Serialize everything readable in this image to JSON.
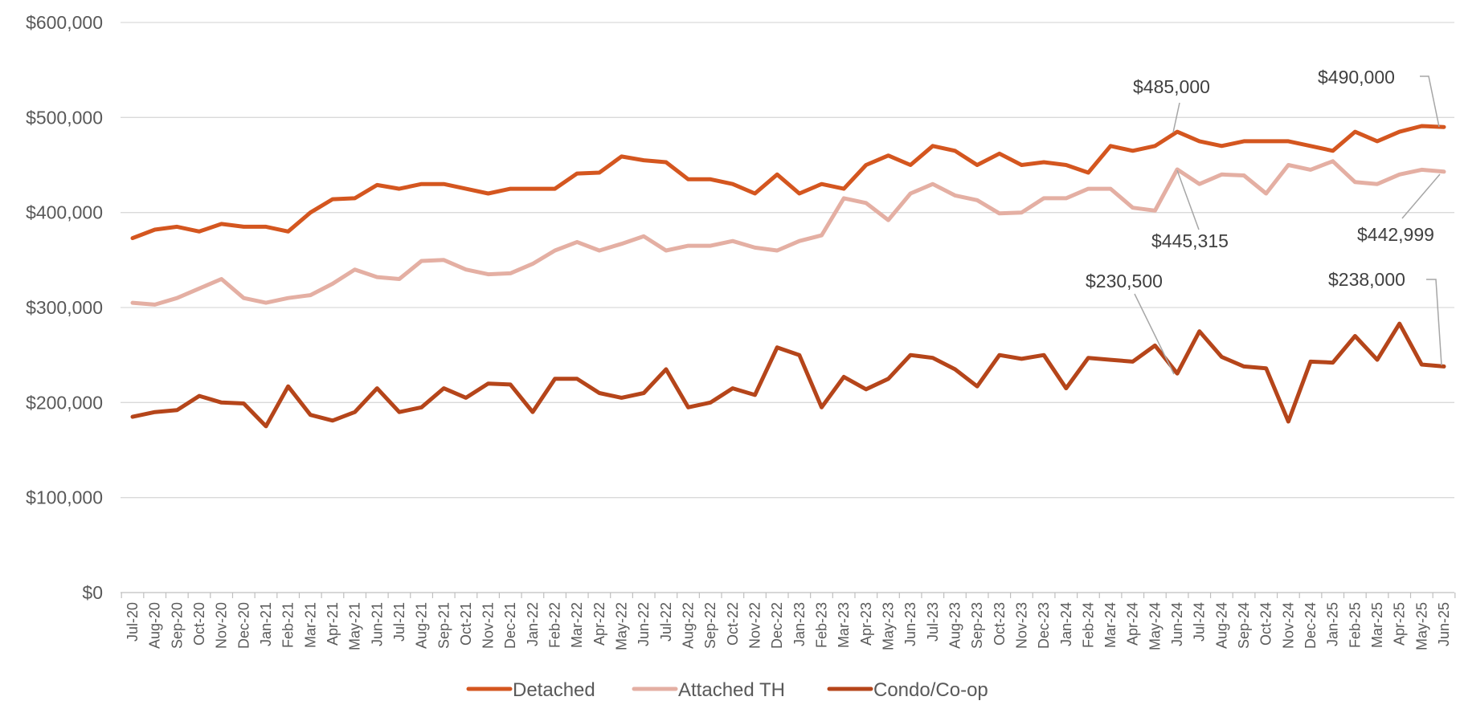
{
  "chart_data": {
    "type": "line",
    "title": "",
    "xlabel": "",
    "ylabel": "",
    "ylim": [
      0,
      600000
    ],
    "y_ticks": [
      "$0",
      "$100,000",
      "$200,000",
      "$300,000",
      "$400,000",
      "$500,000",
      "$600,000"
    ],
    "grid": "horizontal",
    "legend_position": "bottom",
    "categories": [
      "Jul-20",
      "Aug-20",
      "Sep-20",
      "Oct-20",
      "Nov-20",
      "Dec-20",
      "Jan-21",
      "Feb-21",
      "Mar-21",
      "Apr-21",
      "May-21",
      "Jun-21",
      "Jul-21",
      "Aug-21",
      "Sep-21",
      "Oct-21",
      "Nov-21",
      "Dec-21",
      "Jan-22",
      "Feb-22",
      "Mar-22",
      "Apr-22",
      "May-22",
      "Jun-22",
      "Jul-22",
      "Aug-22",
      "Sep-22",
      "Oct-22",
      "Nov-22",
      "Dec-22",
      "Jan-23",
      "Feb-23",
      "Mar-23",
      "Apr-23",
      "May-23",
      "Jun-23",
      "Jul-23",
      "Aug-23",
      "Sep-23",
      "Oct-23",
      "Nov-23",
      "Dec-23",
      "Jan-24",
      "Feb-24",
      "Mar-24",
      "Apr-24",
      "May-24",
      "Jun-24",
      "Jul-24",
      "Aug-24",
      "Sep-24",
      "Oct-24",
      "Nov-24",
      "Dec-24",
      "Jan-25",
      "Feb-25",
      "Mar-25",
      "Apr-25",
      "May-25",
      "Jun-25"
    ],
    "series": [
      {
        "name": "Detached",
        "color": "#D4561F",
        "values": [
          373000,
          382000,
          385000,
          380000,
          388000,
          385000,
          385000,
          380000,
          400000,
          414000,
          415000,
          429000,
          425000,
          430000,
          430000,
          425000,
          420000,
          425000,
          425000,
          425000,
          441000,
          442000,
          459000,
          455000,
          453000,
          435000,
          435000,
          430000,
          420000,
          440000,
          420000,
          430000,
          425000,
          450000,
          460000,
          450000,
          470000,
          465000,
          450000,
          462000,
          450000,
          453000,
          450000,
          442000,
          470000,
          465000,
          470000,
          485000,
          475000,
          470000,
          475000,
          475000,
          475000,
          470000,
          465000,
          485000,
          475000,
          485000,
          491000,
          490000
        ]
      },
      {
        "name": "Attached TH",
        "color": "#E4AFA3",
        "values": [
          305000,
          303000,
          310000,
          320000,
          330000,
          310000,
          305000,
          310000,
          313000,
          325000,
          340000,
          332000,
          330000,
          349000,
          350000,
          340000,
          335000,
          336000,
          346000,
          360000,
          369000,
          360000,
          367000,
          375000,
          360000,
          365000,
          365000,
          370000,
          363000,
          360000,
          370000,
          376000,
          415000,
          410000,
          392000,
          420000,
          430000,
          418000,
          413000,
          399000,
          400000,
          415000,
          415000,
          425000,
          425000,
          405000,
          402000,
          445315,
          430000,
          440000,
          439000,
          420000,
          450000,
          445000,
          454000,
          432000,
          430000,
          440000,
          445000,
          442999
        ]
      },
      {
        "name": "Condo/Co-op",
        "color": "#B5451A",
        "values": [
          185000,
          190000,
          192000,
          207000,
          200000,
          199000,
          175000,
          217000,
          187000,
          181000,
          190000,
          215000,
          190000,
          195000,
          215000,
          205000,
          220000,
          219000,
          190000,
          225000,
          225000,
          210000,
          205000,
          210000,
          235000,
          195000,
          200000,
          215000,
          208000,
          258000,
          250000,
          195000,
          227000,
          214000,
          225000,
          250000,
          247000,
          235000,
          217000,
          250000,
          246000,
          250000,
          215000,
          247000,
          245000,
          243000,
          260000,
          230500,
          275000,
          248000,
          238000,
          236000,
          180000,
          243000,
          242000,
          270000,
          245000,
          283000,
          240000,
          238000
        ]
      }
    ],
    "annotations": [
      {
        "series": "Detached",
        "category": "Jun-24",
        "text": "$485,000"
      },
      {
        "series": "Detached",
        "category": "Jun-25",
        "text": "$490,000"
      },
      {
        "series": "Attached TH",
        "category": "Jun-24",
        "text": "$445,315"
      },
      {
        "series": "Attached TH",
        "category": "Jun-25",
        "text": "$442,999"
      },
      {
        "series": "Condo/Co-op",
        "category": "Jun-24",
        "text": "$230,500"
      },
      {
        "series": "Condo/Co-op",
        "category": "Jun-25",
        "text": "$238,000"
      }
    ]
  }
}
